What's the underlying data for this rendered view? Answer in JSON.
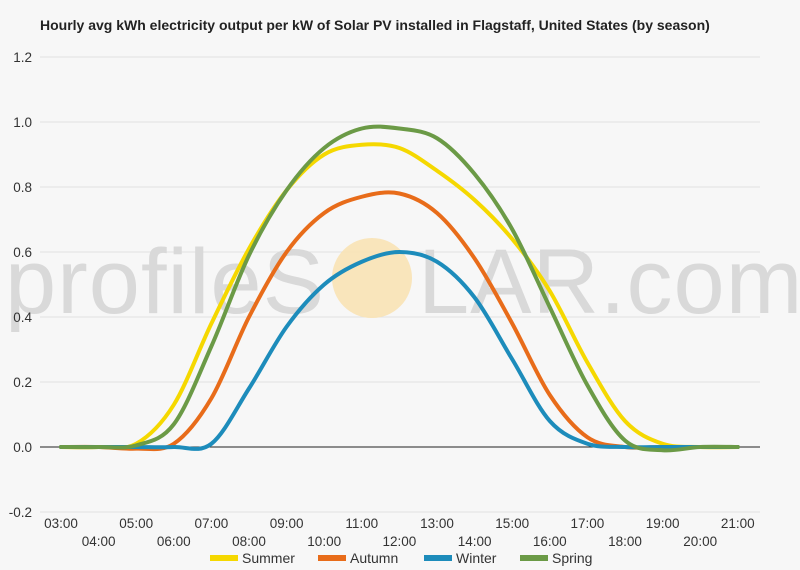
{
  "chart_data": {
    "type": "line",
    "title": "Hourly avg kWh electricity output per kW of Solar PV installed in Flagstaff, United States (by season)",
    "xlabel": "",
    "ylabel": "",
    "ylim": [
      -0.2,
      1.2
    ],
    "yticks": [
      "1.2",
      "1.0",
      "0.8",
      "0.6",
      "0.4",
      "0.2",
      "0.0",
      "-0.2"
    ],
    "ytick_values": [
      1.2,
      1.0,
      0.8,
      0.6,
      0.4,
      0.2,
      0.0,
      -0.2
    ],
    "categories": [
      "03:00",
      "04:00",
      "05:00",
      "06:00",
      "07:00",
      "08:00",
      "09:00",
      "10:00",
      "11:00",
      "12:00",
      "13:00",
      "14:00",
      "15:00",
      "16:00",
      "17:00",
      "18:00",
      "19:00",
      "20:00",
      "21:00"
    ],
    "grid": true,
    "legend_position": "bottom",
    "watermark": {
      "left": "profileS",
      "right": "LAR.com"
    },
    "series": [
      {
        "name": "Summer",
        "color": "#f5d800",
        "values": [
          0,
          0,
          0.01,
          0.13,
          0.38,
          0.61,
          0.79,
          0.9,
          0.93,
          0.92,
          0.85,
          0.76,
          0.64,
          0.48,
          0.26,
          0.08,
          0.01,
          0,
          0
        ]
      },
      {
        "name": "Autumn",
        "color": "#e86c1a",
        "values": [
          0,
          0,
          -0.005,
          0.01,
          0.15,
          0.4,
          0.6,
          0.72,
          0.77,
          0.78,
          0.72,
          0.58,
          0.38,
          0.16,
          0.03,
          0,
          0,
          0,
          0
        ]
      },
      {
        "name": "Winter",
        "color": "#1d8cbb",
        "values": [
          0,
          0,
          0,
          0,
          0.01,
          0.18,
          0.37,
          0.5,
          0.57,
          0.6,
          0.57,
          0.46,
          0.27,
          0.08,
          0.01,
          0,
          0,
          0,
          0
        ]
      },
      {
        "name": "Spring",
        "color": "#6b9a46",
        "values": [
          0,
          0,
          0.005,
          0.07,
          0.31,
          0.59,
          0.79,
          0.92,
          0.98,
          0.98,
          0.95,
          0.84,
          0.67,
          0.43,
          0.19,
          0.02,
          -0.01,
          0,
          0
        ]
      }
    ]
  }
}
